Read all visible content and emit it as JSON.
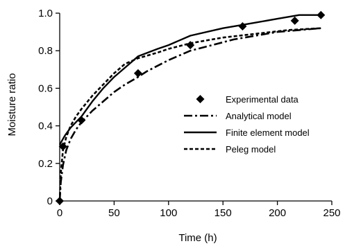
{
  "chart_data": {
    "type": "line",
    "xlabel": "Time (h)",
    "ylabel": "Moisture ratio",
    "xlim": [
      0,
      250
    ],
    "ylim": [
      0,
      1.0
    ],
    "xticks": [
      0,
      50,
      100,
      150,
      200,
      250
    ],
    "yticks": [
      0,
      0.2,
      0.4,
      0.6,
      0.8,
      1.0
    ],
    "ytick_labels": [
      "0",
      "0.2",
      "0.4",
      "0.6",
      "0.8",
      "1.0"
    ],
    "grid": false,
    "legend_position": "right-center",
    "series": [
      {
        "name": "Experimental data",
        "style": "markers",
        "marker": "diamond",
        "x": [
          0,
          3,
          20,
          72,
          120,
          168,
          216,
          240
        ],
        "y": [
          0.0,
          0.29,
          0.43,
          0.68,
          0.83,
          0.93,
          0.96,
          0.99
        ]
      },
      {
        "name": "Analytical model",
        "style": "dash-dot",
        "x": [
          0,
          1,
          3,
          6,
          10,
          15,
          20,
          30,
          40,
          50,
          60,
          72,
          80,
          100,
          120,
          140,
          160,
          180,
          200,
          220,
          240
        ],
        "y": [
          0.0,
          0.1,
          0.19,
          0.27,
          0.33,
          0.38,
          0.42,
          0.48,
          0.53,
          0.58,
          0.62,
          0.66,
          0.69,
          0.75,
          0.8,
          0.83,
          0.86,
          0.88,
          0.9,
          0.91,
          0.92
        ]
      },
      {
        "name": "Finite element model",
        "style": "solid",
        "x": [
          0,
          2,
          5,
          10,
          15,
          20,
          30,
          40,
          50,
          60,
          72,
          90,
          100,
          120,
          150,
          170,
          200,
          220,
          240
        ],
        "y": [
          0.3,
          0.32,
          0.35,
          0.39,
          0.42,
          0.45,
          0.53,
          0.6,
          0.66,
          0.71,
          0.77,
          0.81,
          0.83,
          0.88,
          0.92,
          0.94,
          0.97,
          0.99,
          0.99
        ]
      },
      {
        "name": "Peleg model",
        "style": "dashed",
        "x": [
          0,
          1,
          3,
          6,
          10,
          15,
          20,
          30,
          40,
          50,
          60,
          72,
          90,
          100,
          120,
          150,
          180,
          210,
          240
        ],
        "y": [
          0.0,
          0.15,
          0.27,
          0.34,
          0.4,
          0.45,
          0.49,
          0.56,
          0.62,
          0.68,
          0.73,
          0.76,
          0.79,
          0.81,
          0.84,
          0.87,
          0.89,
          0.91,
          0.92
        ]
      }
    ]
  }
}
